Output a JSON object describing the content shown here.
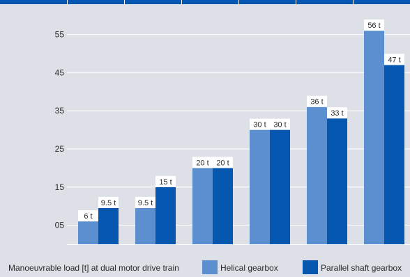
{
  "chart_data": {
    "type": "bar",
    "categories": [
      "",
      "",
      "",
      "",
      "",
      ""
    ],
    "series": [
      {
        "name": "Helical gearbox",
        "color": "#5b8fd0",
        "values": [
          6,
          9.5,
          20,
          30,
          36,
          56
        ],
        "labels": [
          "6 t",
          "9.5 t",
          "20 t",
          "30 t",
          "36 t",
          "56 t"
        ]
      },
      {
        "name": "Parallel shaft gearbox",
        "color": "#0557b0",
        "values": [
          9.5,
          15,
          20,
          30,
          33,
          47
        ],
        "labels": [
          "9.5 t",
          "15 t",
          "20 t",
          "30 t",
          "33 t",
          "47 t"
        ]
      }
    ],
    "yticks": [
      "05",
      "15",
      "25",
      "35",
      "45",
      "55"
    ],
    "ytick_values": [
      5,
      15,
      25,
      35,
      45,
      55
    ],
    "ylim": [
      0,
      57
    ],
    "caption": "Manoeuvrable load [t] at dual motor drive train",
    "header_color": "#0557b0",
    "legend_position": "bottom"
  }
}
